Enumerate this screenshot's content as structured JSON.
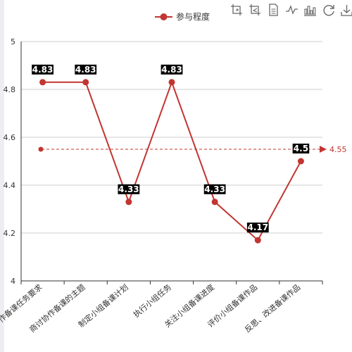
{
  "colors": {
    "series": "#c23531",
    "grid": "#cccccc",
    "axis": "#333333",
    "label_bg": "#000000",
    "label_text": "#ffffff",
    "toolbox": "#666666"
  },
  "toolbox": [
    {
      "name": "zoom-icon"
    },
    {
      "name": "zoom-reset-icon"
    },
    {
      "name": "data-view-icon"
    },
    {
      "name": "line-chart-icon"
    },
    {
      "name": "bar-chart-icon"
    },
    {
      "name": "restore-icon"
    },
    {
      "name": "save-image-icon"
    }
  ],
  "chart_data": {
    "type": "line",
    "title": "",
    "xlabel": "",
    "ylabel": "",
    "categories": [
      "能说出协作备课任务要求",
      "商讨协作备课的主题",
      "制定小组备课计划",
      "执行小组任务",
      "关注小组备课进度",
      "评价小组备课作品",
      "反思、改进备课作品"
    ],
    "series": [
      {
        "name": "参与程度",
        "values": [
          4.83,
          4.83,
          4.33,
          4.83,
          4.33,
          4.17,
          4.5
        ],
        "labels": [
          "4.83",
          "4.83",
          "4.33",
          "4.83",
          "4.33",
          "4.17",
          "4.5"
        ]
      }
    ],
    "ylim": [
      4,
      5
    ],
    "yticks": [
      "4",
      "4.2",
      "4.4",
      "4.6",
      "4.8",
      "5"
    ],
    "mark_line": {
      "type": "average",
      "value": 4.55,
      "label": "4.55"
    },
    "grid": true,
    "legend": "top-center"
  }
}
